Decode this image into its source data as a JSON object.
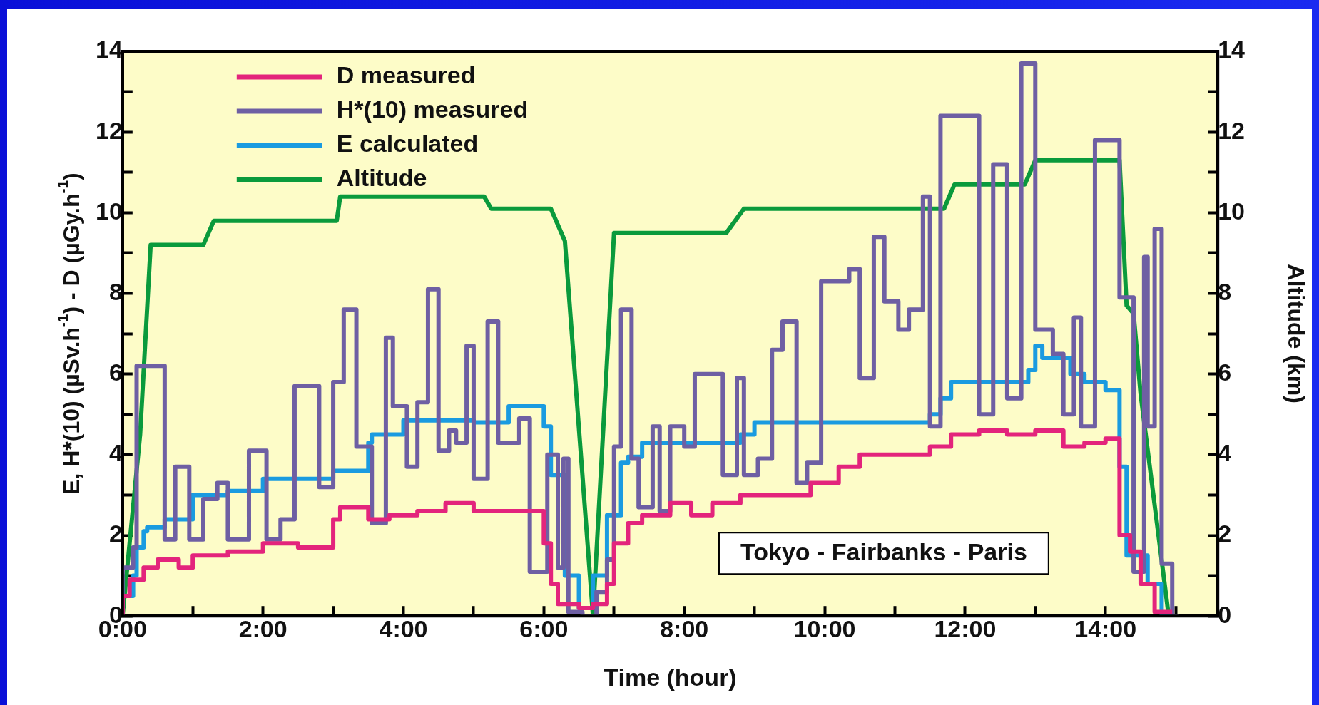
{
  "chart_data": {
    "type": "step",
    "xlabel": "Time (hour)",
    "ylabel": "E, H*(10) (µSv.h$^{-1}$) - D (µGy.h$^{-1}$)",
    "y2label": "Altitude (km)",
    "annotations": [
      "Tokyo - Fairbanks - Paris"
    ],
    "xlim": [
      0,
      15.6
    ],
    "xticks": [
      {
        "value": 0,
        "label": "0:00"
      },
      {
        "value": 1,
        "label": null
      },
      {
        "value": 2,
        "label": "2:00"
      },
      {
        "value": 3,
        "label": null
      },
      {
        "value": 4,
        "label": "4:00"
      },
      {
        "value": 5,
        "label": null
      },
      {
        "value": 6,
        "label": "6:00"
      },
      {
        "value": 7,
        "label": null
      },
      {
        "value": 8,
        "label": "8:00"
      },
      {
        "value": 9,
        "label": null
      },
      {
        "value": 10,
        "label": "10:00"
      },
      {
        "value": 11,
        "label": null
      },
      {
        "value": 12,
        "label": "12:00"
      },
      {
        "value": 13,
        "label": null
      },
      {
        "value": 14,
        "label": "14:00"
      },
      {
        "value": 15,
        "label": null
      }
    ],
    "ylim": [
      0,
      14
    ],
    "yticks": [
      0,
      {
        "value": 1,
        "label": null
      },
      2,
      {
        "value": 3,
        "label": null
      },
      4,
      {
        "value": 5,
        "label": null
      },
      6,
      {
        "value": 7,
        "label": null
      },
      8,
      {
        "value": 9,
        "label": null
      },
      10,
      {
        "value": 11,
        "label": null
      },
      12,
      {
        "value": 13,
        "label": null
      },
      14
    ],
    "y2lim": [
      0,
      14
    ],
    "y2ticks": [
      0,
      {
        "value": 1,
        "label": null
      },
      2,
      {
        "value": 3,
        "label": null
      },
      4,
      {
        "value": 5,
        "label": null
      },
      6,
      {
        "value": 7,
        "label": null
      },
      8,
      {
        "value": 9,
        "label": null
      },
      10,
      {
        "value": 11,
        "label": null
      },
      12,
      {
        "value": 13,
        "label": null
      },
      14
    ],
    "grid": false,
    "legend": "top left",
    "marker": "none",
    "series": [
      {
        "name": "D measured",
        "color": "#e3247c",
        "x": [
          0,
          0.1,
          0.3,
          0.5,
          0.8,
          1.0,
          1.5,
          2.0,
          2.5,
          3.0,
          3.1,
          3.5,
          3.8,
          4.2,
          4.6,
          5.0,
          5.5,
          6.0,
          6.1,
          6.2,
          6.5,
          6.7,
          6.9,
          7.0,
          7.2,
          7.4,
          7.8,
          8.1,
          8.4,
          8.8,
          9.2,
          9.8,
          10.2,
          10.5,
          11.0,
          11.5,
          11.8,
          12.2,
          12.6,
          13.0,
          13.4,
          13.7,
          14.0,
          14.2,
          14.35,
          14.5,
          14.7,
          14.95
        ],
        "values": [
          0,
          0.5,
          0.9,
          1.2,
          1.4,
          1.2,
          1.5,
          1.6,
          1.8,
          1.7,
          2.4,
          2.7,
          2.4,
          2.5,
          2.6,
          2.8,
          2.6,
          2.6,
          1.8,
          0.8,
          0.3,
          0.2,
          0.3,
          0.8,
          1.8,
          2.3,
          2.5,
          2.8,
          2.5,
          2.8,
          3.0,
          3.0,
          3.3,
          3.7,
          4.0,
          4.0,
          4.2,
          4.5,
          4.6,
          4.5,
          4.6,
          4.2,
          4.3,
          4.4,
          2.0,
          1.6,
          0.8,
          0.1
        ]
      },
      {
        "name": "H*(10) measured",
        "color": "#6e5fa3",
        "x": [
          0,
          0.15,
          0.2,
          0.6,
          0.75,
          0.95,
          1.15,
          1.35,
          1.5,
          1.8,
          2.05,
          2.25,
          2.45,
          2.8,
          3.0,
          3.15,
          3.33,
          3.55,
          3.75,
          3.85,
          4.05,
          4.2,
          4.35,
          4.5,
          4.65,
          4.75,
          4.9,
          5.0,
          5.2,
          5.35,
          5.65,
          5.8,
          6.05,
          6.2,
          6.28,
          6.35,
          6.55,
          6.75,
          6.9,
          7.0,
          7.1,
          7.25,
          7.35,
          7.55,
          7.65,
          7.8,
          8.0,
          8.15,
          8.55,
          8.75,
          8.85,
          9.05,
          9.25,
          9.4,
          9.6,
          9.75,
          9.95,
          10.35,
          10.5,
          10.7,
          10.85,
          11.05,
          11.2,
          11.4,
          11.5,
          11.65,
          12.2,
          12.4,
          12.6,
          12.8,
          13.0,
          13.25,
          13.4,
          13.55,
          13.65,
          13.85,
          14.2,
          14.4,
          14.55,
          14.6,
          14.7,
          14.8,
          14.95,
          15.05
        ],
        "values": [
          0,
          1.2,
          1.7,
          6.2,
          1.9,
          3.7,
          1.9,
          2.9,
          3.3,
          1.9,
          4.1,
          1.9,
          2.4,
          5.7,
          3.2,
          5.8,
          7.6,
          4.2,
          2.3,
          6.9,
          5.2,
          3.7,
          5.3,
          8.1,
          4.1,
          4.6,
          4.3,
          6.7,
          3.4,
          7.3,
          4.3,
          4.9,
          1.1,
          4.0,
          1.2,
          3.9,
          0.1,
          0.0,
          0.6,
          1.4,
          4.2,
          7.6,
          3.9,
          2.7,
          4.7,
          2.6,
          4.7,
          4.2,
          6.0,
          3.5,
          5.9,
          3.5,
          3.9,
          6.6,
          7.3,
          3.3,
          3.8,
          8.3,
          8.6,
          5.9,
          9.4,
          7.8,
          7.1,
          7.6,
          10.4,
          4.7,
          12.4,
          5.0,
          11.2,
          5.4,
          13.7,
          7.1,
          6.5,
          5.0,
          7.4,
          4.7,
          11.8,
          7.9,
          1.1,
          8.9,
          4.7,
          9.6,
          1.3,
          0
        ]
      },
      {
        "name": "E calculated",
        "color": "#1a9be0",
        "x": [
          0,
          0.15,
          0.2,
          0.3,
          0.35,
          0.6,
          1.0,
          1.5,
          2.0,
          3.0,
          3.5,
          3.55,
          4.0,
          5.0,
          5.5,
          6.0,
          6.1,
          6.3,
          6.5,
          6.7,
          6.9,
          7.1,
          7.2,
          7.4,
          8.8,
          9.0,
          9.1,
          11.5,
          11.65,
          11.8,
          12.0,
          12.9,
          13.0,
          13.1,
          13.5,
          13.7,
          14.0,
          14.2,
          14.3,
          14.6,
          14.8,
          15.0
        ],
        "values": [
          0,
          0.5,
          1.0,
          1.7,
          2.1,
          2.2,
          2.4,
          3.0,
          3.1,
          3.4,
          3.6,
          4.3,
          4.5,
          4.85,
          4.8,
          5.2,
          4.7,
          3.5,
          1.0,
          0.2,
          1.0,
          2.5,
          3.8,
          3.95,
          4.3,
          4.5,
          4.8,
          4.8,
          5.0,
          5.4,
          5.8,
          5.8,
          6.1,
          6.7,
          6.4,
          6.0,
          5.8,
          5.6,
          3.7,
          1.5,
          0.8,
          0
        ]
      },
      {
        "name": "Altitude",
        "color": "#0a9a3c",
        "type": "line",
        "axis": "y2",
        "x": [
          0,
          0.25,
          0.4,
          1.15,
          1.3,
          3.05,
          3.1,
          5.15,
          5.25,
          6.1,
          6.3,
          6.7,
          7.0,
          8.6,
          8.85,
          11.7,
          11.85,
          12.85,
          13.0,
          14.2,
          14.3,
          14.4,
          14.5,
          14.9
        ],
        "values": [
          0,
          4.5,
          9.2,
          9.2,
          9.8,
          9.8,
          10.4,
          10.4,
          10.1,
          10.1,
          9.3,
          0,
          9.5,
          9.5,
          10.1,
          10.1,
          10.7,
          10.7,
          11.3,
          11.3,
          7.7,
          7.5,
          5.5,
          0
        ]
      }
    ]
  }
}
